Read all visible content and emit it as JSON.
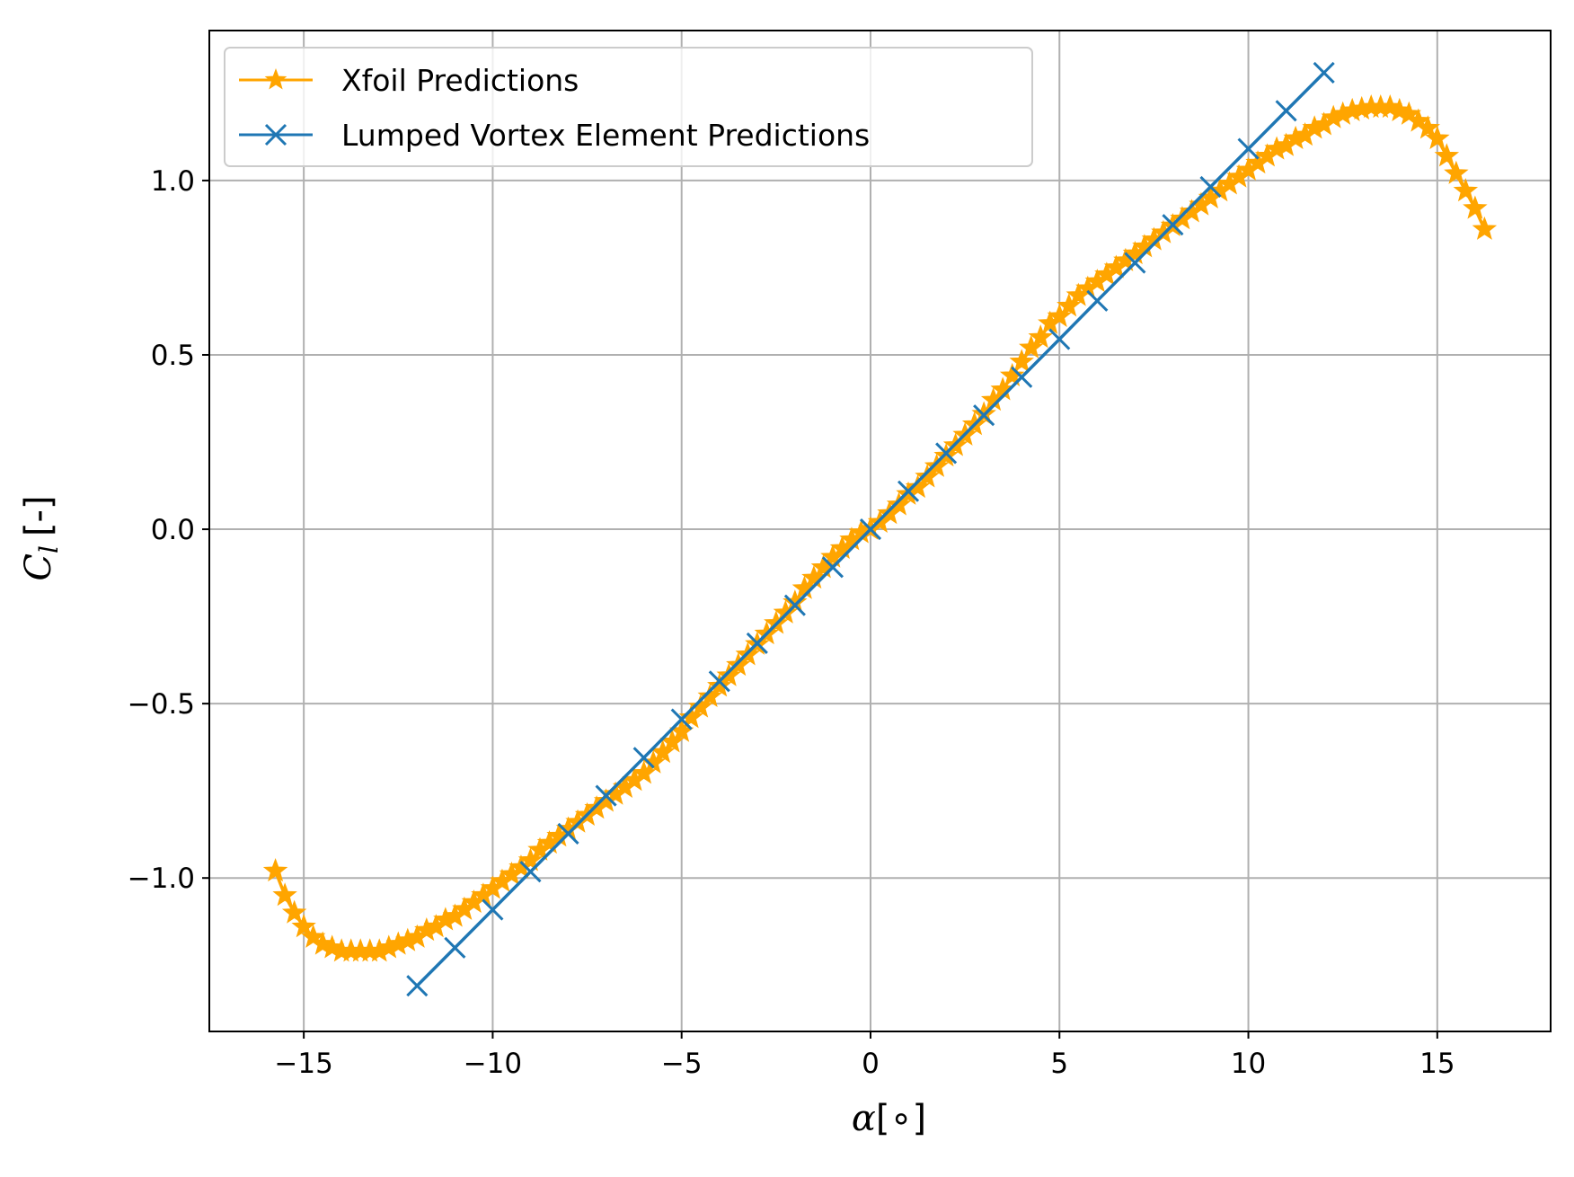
{
  "chart_data": {
    "type": "line",
    "title": "",
    "xlabel_symbol": "α",
    "xlabel_unit": "[∘]",
    "ylabel_symbol": "C",
    "ylabel_sub": "l",
    "ylabel_unit": "[-]",
    "xlim": [
      -17.5,
      18
    ],
    "ylim": [
      -1.44,
      1.43
    ],
    "x_ticks": [
      -15,
      -10,
      -5,
      0,
      5,
      10,
      15
    ],
    "x_tick_labels": [
      "−15",
      "−10",
      "−5",
      "0",
      "5",
      "10",
      "15"
    ],
    "y_ticks": [
      -1.0,
      -0.5,
      0.0,
      0.5,
      1.0
    ],
    "y_tick_labels": [
      "−1.0",
      "−0.5",
      "0.0",
      "0.5",
      "1.0"
    ],
    "grid": true,
    "legend_position": "top-left",
    "series": [
      {
        "name": "Xfoil Predictions",
        "color": "#FFA500",
        "marker": "star",
        "x": [
          -15.75,
          -15.5,
          -15.25,
          -15.0,
          -14.75,
          -14.5,
          -14.25,
          -14.0,
          -13.75,
          -13.5,
          -13.25,
          -13.0,
          -12.75,
          -12.5,
          -12.25,
          -12.0,
          -11.75,
          -11.5,
          -11.25,
          -11.0,
          -10.75,
          -10.5,
          -10.25,
          -10.0,
          -9.75,
          -9.5,
          -9.25,
          -9.0,
          -8.75,
          -8.5,
          -8.25,
          -8.0,
          -7.75,
          -7.5,
          -7.25,
          -7.0,
          -6.75,
          -6.5,
          -6.25,
          -6.0,
          -5.75,
          -5.5,
          -5.25,
          -5.0,
          -4.75,
          -4.5,
          -4.25,
          -4.0,
          -3.75,
          -3.5,
          -3.25,
          -3.0,
          -2.75,
          -2.5,
          -2.25,
          -2.0,
          -1.75,
          -1.5,
          -1.25,
          -1.0,
          -0.75,
          -0.5,
          -0.25,
          0.0,
          0.25,
          0.5,
          0.75,
          1.0,
          1.25,
          1.5,
          1.75,
          2.0,
          2.25,
          2.5,
          2.75,
          3.0,
          3.25,
          3.5,
          3.75,
          4.0,
          4.25,
          4.5,
          4.75,
          5.0,
          5.25,
          5.5,
          5.75,
          6.0,
          6.25,
          6.5,
          6.75,
          7.0,
          7.25,
          7.5,
          7.75,
          8.0,
          8.25,
          8.5,
          8.75,
          9.0,
          9.25,
          9.5,
          9.75,
          10.0,
          10.25,
          10.5,
          10.75,
          11.0,
          11.25,
          11.5,
          11.75,
          12.0,
          12.25,
          12.5,
          12.75,
          13.0,
          13.25,
          13.5,
          13.75,
          14.0,
          14.25,
          14.5,
          14.75,
          15.0,
          15.25,
          15.5,
          15.75,
          16.0,
          16.25
        ],
        "y": [
          -0.98,
          -1.05,
          -1.1,
          -1.14,
          -1.17,
          -1.19,
          -1.2,
          -1.21,
          -1.21,
          -1.21,
          -1.21,
          -1.21,
          -1.2,
          -1.19,
          -1.18,
          -1.17,
          -1.15,
          -1.14,
          -1.12,
          -1.11,
          -1.09,
          -1.07,
          -1.05,
          -1.03,
          -1.01,
          -0.99,
          -0.97,
          -0.95,
          -0.92,
          -0.9,
          -0.88,
          -0.86,
          -0.84,
          -0.82,
          -0.8,
          -0.78,
          -0.76,
          -0.74,
          -0.72,
          -0.7,
          -0.67,
          -0.64,
          -0.61,
          -0.58,
          -0.54,
          -0.51,
          -0.48,
          -0.45,
          -0.42,
          -0.39,
          -0.36,
          -0.33,
          -0.3,
          -0.27,
          -0.24,
          -0.21,
          -0.17,
          -0.14,
          -0.11,
          -0.08,
          -0.055,
          -0.03,
          -0.01,
          0.0,
          0.02,
          0.045,
          0.07,
          0.1,
          0.12,
          0.15,
          0.18,
          0.21,
          0.24,
          0.27,
          0.3,
          0.33,
          0.37,
          0.4,
          0.44,
          0.48,
          0.52,
          0.55,
          0.59,
          0.61,
          0.64,
          0.67,
          0.69,
          0.71,
          0.73,
          0.75,
          0.77,
          0.79,
          0.81,
          0.83,
          0.85,
          0.87,
          0.89,
          0.91,
          0.93,
          0.95,
          0.97,
          0.99,
          1.01,
          1.03,
          1.05,
          1.07,
          1.09,
          1.1,
          1.12,
          1.13,
          1.15,
          1.16,
          1.18,
          1.19,
          1.2,
          1.205,
          1.21,
          1.21,
          1.21,
          1.2,
          1.19,
          1.17,
          1.15,
          1.12,
          1.07,
          1.02,
          0.97,
          0.92,
          0.86
        ]
      },
      {
        "name": "Lumped Vortex Element Predictions",
        "color": "#1F77B4",
        "marker": "x",
        "x": [
          -12,
          -11,
          -10,
          -9,
          -8,
          -7,
          -6,
          -5,
          -4,
          -3,
          -2,
          -1,
          0,
          1,
          2,
          3,
          4,
          5,
          6,
          7,
          8,
          9,
          10,
          11,
          12
        ],
        "y": [
          -1.309,
          -1.2,
          -1.091,
          -0.982,
          -0.873,
          -0.764,
          -0.655,
          -0.545,
          -0.436,
          -0.327,
          -0.218,
          -0.109,
          0.0,
          0.109,
          0.218,
          0.327,
          0.436,
          0.545,
          0.655,
          0.764,
          0.873,
          0.982,
          1.091,
          1.2,
          1.309
        ]
      }
    ]
  }
}
